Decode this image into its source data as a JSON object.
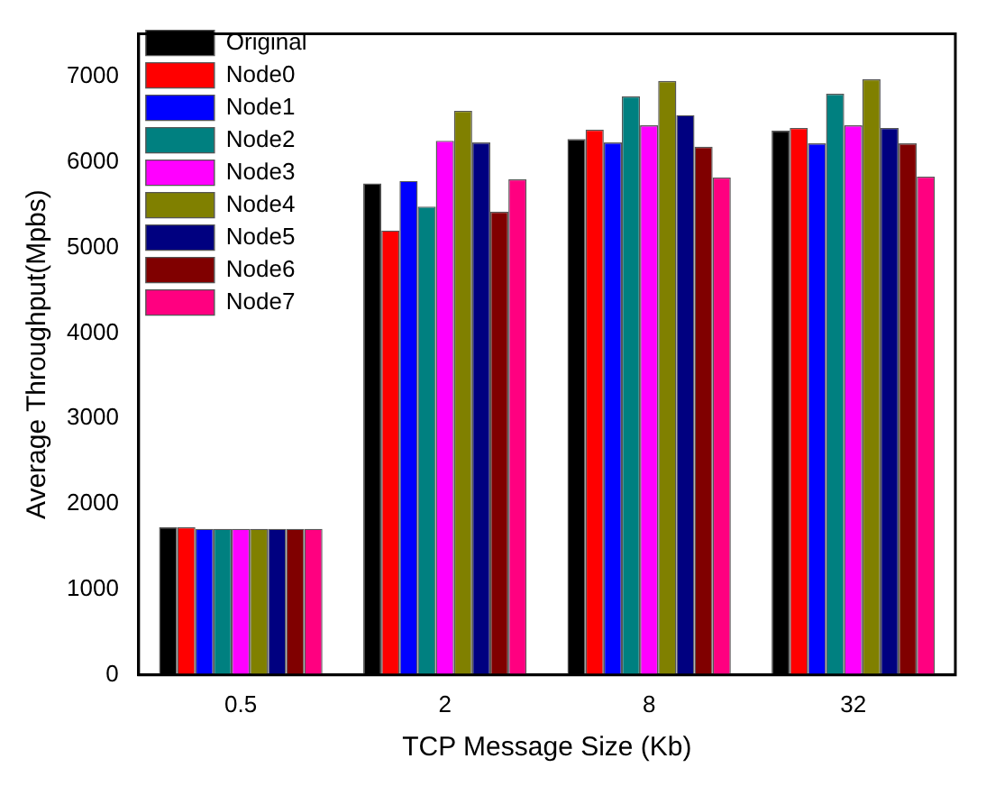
{
  "chart_data": {
    "type": "bar",
    "xlabel": "TCP Message Size (Kb)",
    "ylabel": "Average Throughput(Mpbs)",
    "categories": [
      "0.5",
      "2",
      "8",
      "32"
    ],
    "ylim": [
      0,
      7500
    ],
    "yticks": [
      0,
      1000,
      2000,
      3000,
      4000,
      5000,
      6000,
      7000
    ],
    "grid": false,
    "legend": "top left",
    "series": [
      {
        "name": "Original",
        "color": "#000000",
        "values": [
          1730,
          5750,
          6270,
          6370
        ]
      },
      {
        "name": "Node0",
        "color": "#ff0000",
        "values": [
          1730,
          5200,
          6380,
          6400
        ]
      },
      {
        "name": "Node1",
        "color": "#0000ff",
        "values": [
          1710,
          5780,
          6230,
          6220
        ]
      },
      {
        "name": "Node2",
        "color": "#008080",
        "values": [
          1710,
          5480,
          6770,
          6800
        ]
      },
      {
        "name": "Node3",
        "color": "#ff00ff",
        "values": [
          1710,
          6250,
          6430,
          6430
        ]
      },
      {
        "name": "Node4",
        "color": "#808000",
        "values": [
          1710,
          6600,
          6950,
          6970
        ]
      },
      {
        "name": "Node5",
        "color": "#000080",
        "values": [
          1710,
          6230,
          6550,
          6400
        ]
      },
      {
        "name": "Node6",
        "color": "#800000",
        "values": [
          1710,
          5420,
          6180,
          6220
        ]
      },
      {
        "name": "Node7",
        "color": "#ff0080",
        "values": [
          1710,
          5800,
          5820,
          5830
        ]
      }
    ]
  }
}
